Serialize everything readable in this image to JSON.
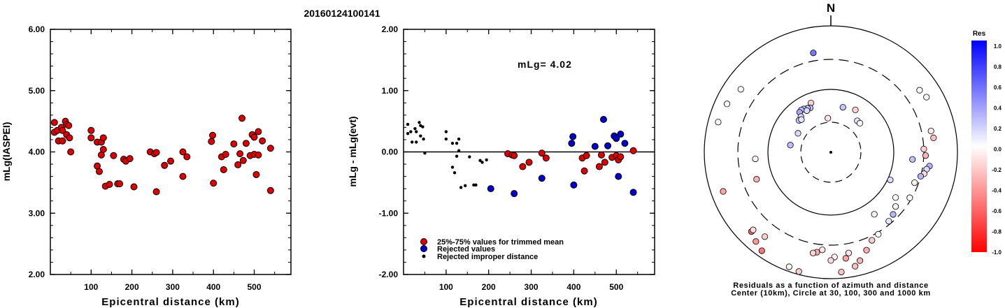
{
  "title": "20160124100141",
  "chart_data": [
    {
      "type": "scatter",
      "xlabel": "Epicentral distance (km)",
      "ylabel": "mLg(IASPEI)",
      "xlim": [
        0,
        590
      ],
      "ylim": [
        2.0,
        6.0
      ],
      "x_ticks": [
        "100",
        "200",
        "300",
        "400",
        "500"
      ],
      "y_ticks": [
        "2.00",
        "3.00",
        "4.00",
        "5.00",
        "6.00"
      ],
      "series": [
        {
          "color": "#dd0000",
          "points": [
            [
              10,
              4.48
            ],
            [
              10,
              4.32
            ],
            [
              17,
              4.35
            ],
            [
              20,
              4.18
            ],
            [
              27,
              4.4
            ],
            [
              30,
              4.35
            ],
            [
              30,
              4.18
            ],
            [
              37,
              4.5
            ],
            [
              40,
              4.28
            ],
            [
              40,
              4.45
            ],
            [
              45,
              4.43
            ],
            [
              47,
              4.23
            ],
            [
              50,
              4.0
            ],
            [
              100,
              4.35
            ],
            [
              100,
              4.23
            ],
            [
              115,
              4.16
            ],
            [
              115,
              3.77
            ],
            [
              120,
              3.68
            ],
            [
              125,
              4.16
            ],
            [
              125,
              3.95
            ],
            [
              130,
              4.23
            ],
            [
              130,
              4.04
            ],
            [
              135,
              3.44
            ],
            [
              145,
              3.47
            ],
            [
              155,
              3.94
            ],
            [
              165,
              3.48
            ],
            [
              170,
              3.48
            ],
            [
              180,
              3.88
            ],
            [
              185,
              3.85
            ],
            [
              195,
              3.89
            ],
            [
              205,
              3.43
            ],
            [
              245,
              4.0
            ],
            [
              255,
              3.97
            ],
            [
              260,
              3.99
            ],
            [
              260,
              3.35
            ],
            [
              280,
              3.78
            ],
            [
              295,
              3.85
            ],
            [
              325,
              3.6
            ],
            [
              325,
              4.0
            ],
            [
              335,
              3.92
            ],
            [
              395,
              4.17
            ],
            [
              398,
              4.27
            ],
            [
              400,
              3.49
            ],
            [
              420,
              3.92
            ],
            [
              425,
              3.71
            ],
            [
              430,
              3.96
            ],
            [
              450,
              4.13
            ],
            [
              460,
              3.79
            ],
            [
              465,
              3.97
            ],
            [
              470,
              4.55
            ],
            [
              473,
              3.86
            ],
            [
              480,
              4.14
            ],
            [
              490,
              3.94
            ],
            [
              495,
              4.28
            ],
            [
              500,
              3.96
            ],
            [
              500,
              4.24
            ],
            [
              505,
              3.63
            ],
            [
              510,
              4.33
            ],
            [
              510,
              3.95
            ],
            [
              520,
              4.18
            ],
            [
              540,
              4.06
            ],
            [
              540,
              3.37
            ]
          ]
        }
      ]
    },
    {
      "type": "scatter",
      "xlabel": "Epicentral distance (km)",
      "ylabel": "mLg - mLg(evt)",
      "annotation": "mLg= 4.02",
      "xlim": [
        0,
        590
      ],
      "ylim": [
        -2.0,
        2.0
      ],
      "x_ticks": [
        "100",
        "200",
        "300",
        "400",
        "500"
      ],
      "y_ticks": [
        "-2.00",
        "-1.00",
        "0.00",
        "1.00",
        "2.00"
      ],
      "series": [
        {
          "name": "25%-75% values for trimmed mean",
          "color": "#dd0000",
          "marker": "circle",
          "points": [
            [
              245,
              -0.03
            ],
            [
              255,
              -0.05
            ],
            [
              260,
              -0.06
            ],
            [
              280,
              -0.24
            ],
            [
              295,
              -0.17
            ],
            [
              325,
              -0.02
            ],
            [
              335,
              -0.1
            ],
            [
              420,
              -0.1
            ],
            [
              425,
              -0.31
            ],
            [
              430,
              -0.06
            ],
            [
              460,
              -0.24
            ],
            [
              465,
              -0.05
            ],
            [
              473,
              -0.17
            ],
            [
              490,
              -0.09
            ],
            [
              500,
              -0.06
            ],
            [
              505,
              -0.13
            ],
            [
              510,
              -0.08
            ],
            [
              540,
              0.02
            ]
          ]
        },
        {
          "name": "Rejected values",
          "color": "#0000cc",
          "marker": "circle",
          "points": [
            [
              205,
              -0.6
            ],
            [
              260,
              -0.68
            ],
            [
              325,
              -0.43
            ],
            [
              395,
              0.14
            ],
            [
              398,
              0.25
            ],
            [
              400,
              -0.54
            ],
            [
              450,
              0.09
            ],
            [
              470,
              0.53
            ],
            [
              480,
              0.1
            ],
            [
              495,
              0.26
            ],
            [
              500,
              0.22
            ],
            [
              505,
              -0.4
            ],
            [
              510,
              0.29
            ],
            [
              520,
              0.14
            ],
            [
              540,
              -0.66
            ]
          ]
        },
        {
          "name": "Rejected improper distance",
          "color": "#000000",
          "marker": "dot",
          "points": [
            [
              10,
              0.45
            ],
            [
              10,
              0.3
            ],
            [
              17,
              0.33
            ],
            [
              20,
              0.16
            ],
            [
              27,
              0.38
            ],
            [
              30,
              0.33
            ],
            [
              30,
              0.16
            ],
            [
              37,
              0.48
            ],
            [
              40,
              0.26
            ],
            [
              40,
              0.43
            ],
            [
              45,
              0.41
            ],
            [
              47,
              0.21
            ],
            [
              50,
              -0.02
            ],
            [
              100,
              0.33
            ],
            [
              100,
              0.21
            ],
            [
              115,
              0.14
            ],
            [
              115,
              -0.25
            ],
            [
              120,
              -0.34
            ],
            [
              125,
              0.14
            ],
            [
              125,
              -0.07
            ],
            [
              130,
              0.21
            ],
            [
              130,
              0.02
            ],
            [
              135,
              -0.58
            ],
            [
              145,
              -0.55
            ],
            [
              155,
              -0.08
            ],
            [
              165,
              -0.54
            ],
            [
              170,
              -0.54
            ],
            [
              180,
              -0.14
            ],
            [
              185,
              -0.17
            ],
            [
              195,
              -0.13
            ]
          ]
        }
      ]
    },
    {
      "type": "scatter",
      "projection": "polar",
      "north_label": "N",
      "caption_line1": "Residuals as a function of azimuth and distance",
      "caption_line2": "Center (10km), Circle at 30, 100, 300 and 1000 km",
      "colorbar": {
        "title": "Res",
        "ticks": [
          "1.0",
          "0.8",
          "0.6",
          "0.4",
          "0.2",
          "0.0",
          "-0.2",
          "-0.4",
          "-0.6",
          "-0.8",
          "-1.0"
        ]
      },
      "stations": [
        [
          -22,
          -0.17
        ],
        [
          -25,
          0.26
        ],
        [
          -28,
          0.22
        ],
        [
          -32,
          0.29
        ],
        [
          -30,
          0.14
        ],
        [
          -35,
          0.25
        ],
        [
          -38,
          0.33
        ],
        [
          -40,
          0.16
        ],
        [
          -45,
          0.21
        ],
        [
          -42,
          0.1
        ],
        [
          -60,
          0.14
        ],
        [
          -80,
          0.26
        ],
        [
          -95,
          -0.06
        ],
        [
          -110,
          -0.3
        ],
        [
          40,
          0.1
        ],
        [
          115,
          0.14
        ],
        [
          15,
          0.22
        ],
        [
          -5,
          -0.1
        ],
        [
          30,
          -0.17
        ],
        [
          45,
          -0.02
        ],
        [
          -10,
          0.53
        ],
        [
          -55,
          -0.03
        ],
        [
          -75,
          -0.05
        ],
        [
          -65,
          0.02
        ],
        [
          55,
          0.02
        ],
        [
          60,
          -0.04
        ],
        [
          78,
          -0.09
        ],
        [
          82,
          -0.24
        ],
        [
          88,
          -0.18
        ],
        [
          92,
          -0.3
        ],
        [
          95,
          0.24
        ],
        [
          98,
          0.29
        ],
        [
          100,
          0.14
        ],
        [
          103,
          -0.13
        ],
        [
          105,
          0.3
        ],
        [
          110,
          -0.05
        ],
        [
          125,
          -0.02
        ],
        [
          130,
          -0.06
        ],
        [
          135,
          0.28
        ],
        [
          140,
          0.1
        ],
        [
          145,
          0.05
        ],
        [
          120,
          0.0
        ],
        [
          150,
          0.0
        ],
        [
          155,
          -0.2
        ],
        [
          160,
          -0.31
        ],
        [
          165,
          -0.3
        ],
        [
          168,
          -0.25
        ],
        [
          170,
          -0.1
        ],
        [
          172,
          -0.35
        ],
        [
          175,
          -0.24
        ],
        [
          178,
          -0.06
        ],
        [
          180,
          -0.15
        ],
        [
          185,
          -0.09
        ],
        [
          188,
          -0.31
        ],
        [
          190,
          -0.17
        ],
        [
          195,
          -0.2
        ],
        [
          200,
          -0.05
        ],
        [
          215,
          -0.54
        ],
        [
          220,
          -0.4
        ],
        [
          225,
          -0.6
        ],
        [
          250,
          -0.35
        ],
        [
          -135,
          -0.12
        ],
        [
          -142,
          -0.2
        ]
      ]
    }
  ]
}
